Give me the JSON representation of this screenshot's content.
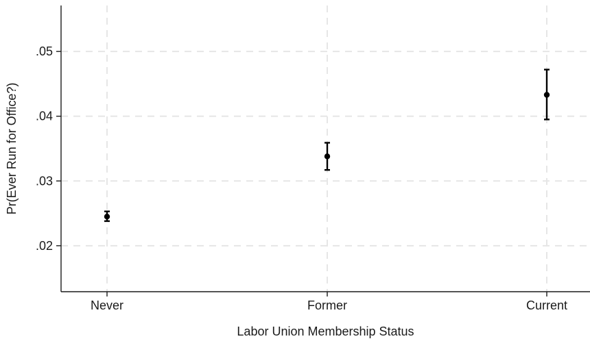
{
  "chart_data": {
    "type": "scatter",
    "title": "",
    "xlabel": "Labor Union Membership Status",
    "ylabel": "Pr(Ever Run for Office?)",
    "categories": [
      "Never",
      "Former",
      "Current"
    ],
    "points": [
      {
        "category": "Never",
        "estimate": 0.0245,
        "ci_low": 0.0238,
        "ci_high": 0.0253
      },
      {
        "category": "Former",
        "estimate": 0.0338,
        "ci_low": 0.0317,
        "ci_high": 0.0359
      },
      {
        "category": "Current",
        "estimate": 0.0433,
        "ci_low": 0.0395,
        "ci_high": 0.0472
      }
    ],
    "yticks": [
      0.02,
      0.03,
      0.04,
      0.05
    ],
    "ytick_labels": [
      ".02",
      ".03",
      ".04",
      ".05"
    ],
    "ylim": [
      0.0129,
      0.0571
    ],
    "grid": true,
    "colors": {
      "marker": "#000000",
      "grid": "#e6e6e6",
      "axis": "#1a1a1a"
    }
  }
}
